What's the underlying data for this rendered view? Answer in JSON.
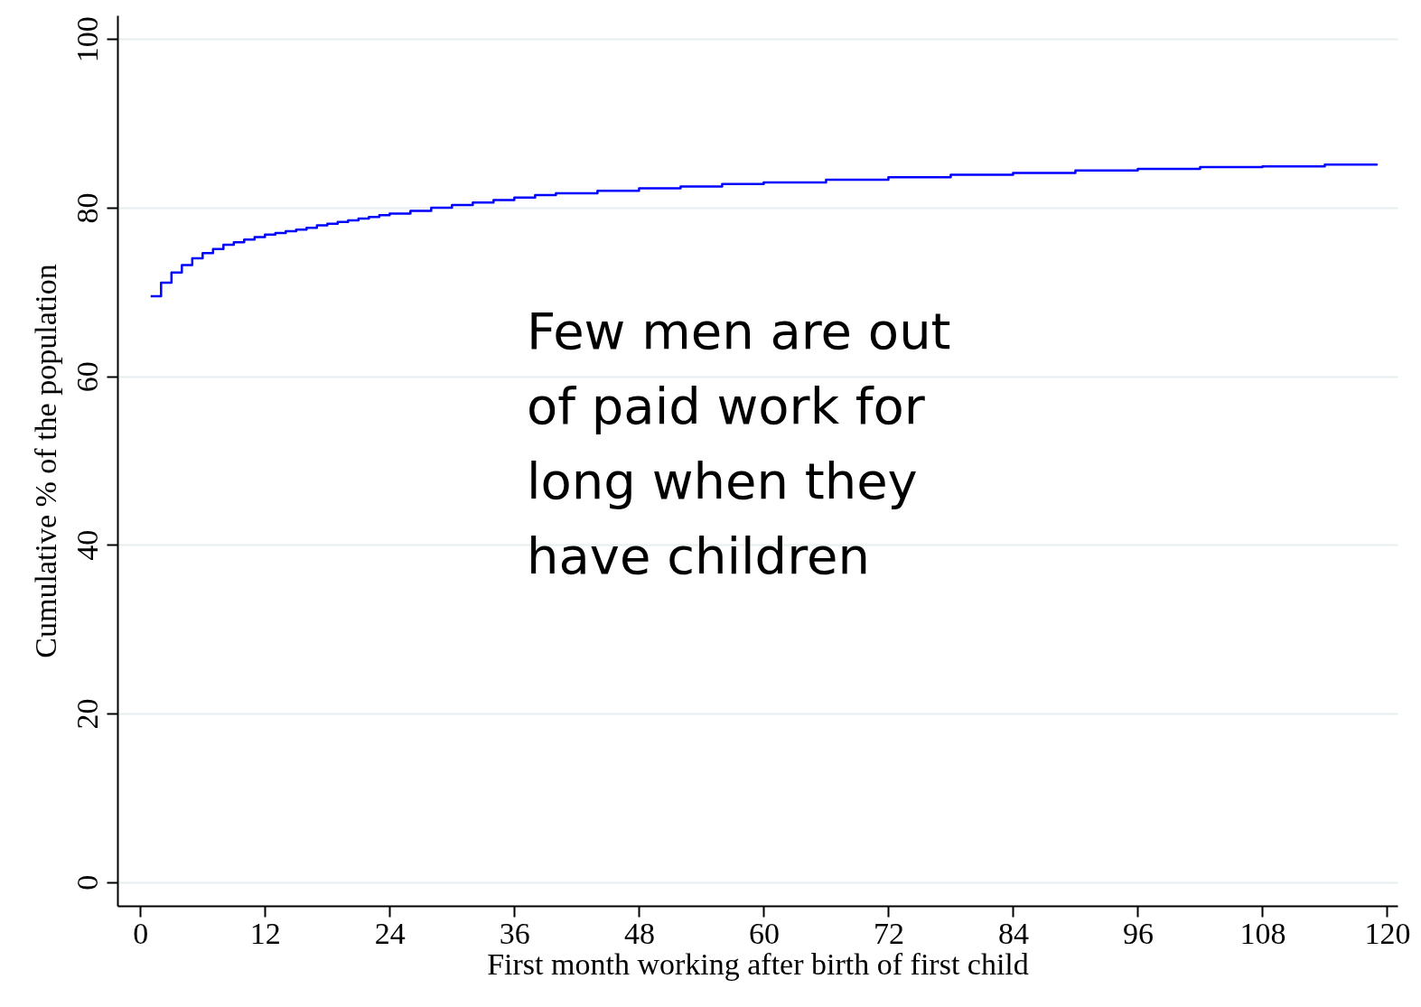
{
  "chart_data": {
    "type": "step",
    "xlabel": "First month working after birth of first child",
    "ylabel": "Cumulative % of the population",
    "annotations": [
      "Few men are out of paid work for long when they have children"
    ],
    "series": [
      {
        "color": "#0000ff",
        "x": [
          1,
          2,
          3,
          4,
          5,
          6,
          7,
          8,
          9,
          10,
          11,
          12,
          13,
          14,
          15,
          16,
          17,
          18,
          19,
          20,
          21,
          22,
          23,
          24,
          26,
          28,
          30,
          32,
          34,
          36,
          38,
          40,
          44,
          48,
          52,
          56,
          60,
          66,
          72,
          78,
          84,
          90,
          96,
          102,
          108,
          114,
          119
        ],
        "values": [
          69.5,
          71.1,
          72.3,
          73.2,
          74.0,
          74.6,
          75.1,
          75.6,
          75.9,
          76.2,
          76.5,
          76.8,
          77.0,
          77.2,
          77.4,
          77.6,
          77.9,
          78.1,
          78.3,
          78.5,
          78.7,
          78.9,
          79.1,
          79.3,
          79.6,
          80.0,
          80.3,
          80.6,
          80.9,
          81.2,
          81.5,
          81.7,
          82.0,
          82.3,
          82.5,
          82.8,
          83.0,
          83.3,
          83.6,
          83.9,
          84.1,
          84.4,
          84.6,
          84.8,
          84.9,
          85.1,
          85.2
        ]
      }
    ],
    "xlim": [
      -2.2,
      121
    ],
    "ylim": [
      -2.8,
      102.8
    ],
    "xticks": [
      0,
      12,
      24,
      36,
      48,
      60,
      72,
      84,
      96,
      108,
      120
    ],
    "yticks": [
      0,
      20,
      40,
      60,
      80,
      100
    ],
    "grid": "y",
    "line_style": "solid"
  }
}
